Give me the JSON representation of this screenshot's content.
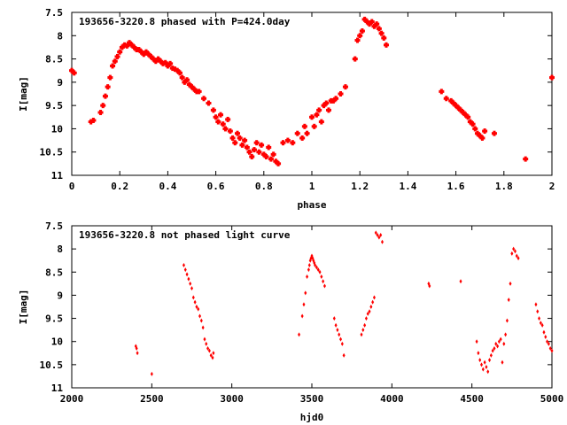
{
  "chart_data": [
    {
      "type": "scatter",
      "title": "193656-3220.8 phased with P=424.0day",
      "xlabel": "phase",
      "ylabel": "I[mag]",
      "xlim": [
        0,
        2
      ],
      "ylim": [
        11,
        7.5
      ],
      "y_inverted": true,
      "x_ticks": [
        "0",
        "0.2",
        "0.4",
        "0.6",
        "0.8",
        "1",
        "1.2",
        "1.4",
        "1.6",
        "1.8",
        "2"
      ],
      "y_ticks": [
        "7.5",
        "8",
        "8.5",
        "9",
        "9.5",
        "10",
        "10.5",
        "11"
      ],
      "grid": false,
      "marker_color": "#ff0000",
      "series": [
        {
          "x": [
            0.0,
            0.01,
            0.08,
            0.09,
            0.12,
            0.13,
            0.14,
            0.15,
            0.16,
            0.17,
            0.18,
            0.19,
            0.2,
            0.21,
            0.22,
            0.23,
            0.24,
            0.25,
            0.26,
            0.27,
            0.28,
            0.29,
            0.3,
            0.31,
            0.32,
            0.33,
            0.34,
            0.35,
            0.36,
            0.37,
            0.38,
            0.39,
            0.4,
            0.41,
            0.42,
            0.43,
            0.44,
            0.45,
            0.46,
            0.47,
            0.48,
            0.49,
            0.5,
            0.51,
            0.52,
            0.53,
            0.55,
            0.57,
            0.59,
            0.6,
            0.61,
            0.62,
            0.63,
            0.64,
            0.65,
            0.66,
            0.67,
            0.68,
            0.69,
            0.7,
            0.71,
            0.72,
            0.73,
            0.74,
            0.75,
            0.76,
            0.77,
            0.78,
            0.79,
            0.8,
            0.81,
            0.82,
            0.83,
            0.84,
            0.85,
            0.86,
            0.88,
            0.9,
            0.92,
            0.94,
            0.96,
            0.97,
            0.98,
            1.0,
            1.01,
            1.02,
            1.03,
            1.04,
            1.05,
            1.06,
            1.07,
            1.08,
            1.09,
            1.1,
            1.12,
            1.14,
            1.18,
            1.19,
            1.2,
            1.21,
            1.22,
            1.23,
            1.24,
            1.25,
            1.26,
            1.27,
            1.28,
            1.29,
            1.3,
            1.31,
            1.54,
            1.56,
            1.58,
            1.59,
            1.6,
            1.61,
            1.62,
            1.63,
            1.64,
            1.65,
            1.66,
            1.67,
            1.68,
            1.69,
            1.7,
            1.71,
            1.72,
            1.76,
            1.89,
            2.0
          ],
          "y": [
            8.75,
            8.8,
            9.85,
            9.82,
            9.65,
            9.5,
            9.3,
            9.1,
            8.9,
            8.65,
            8.55,
            8.45,
            8.35,
            8.25,
            8.2,
            8.22,
            8.15,
            8.2,
            8.25,
            8.3,
            8.3,
            8.35,
            8.4,
            8.35,
            8.4,
            8.45,
            8.5,
            8.55,
            8.5,
            8.55,
            8.6,
            8.58,
            8.65,
            8.6,
            8.7,
            8.72,
            8.75,
            8.8,
            8.9,
            9.0,
            8.95,
            9.05,
            9.1,
            9.15,
            9.2,
            9.2,
            9.35,
            9.45,
            9.6,
            9.75,
            9.85,
            9.7,
            9.9,
            10.0,
            9.8,
            10.05,
            10.2,
            10.3,
            10.1,
            10.2,
            10.35,
            10.25,
            10.4,
            10.5,
            10.6,
            10.45,
            10.3,
            10.5,
            10.35,
            10.55,
            10.6,
            10.4,
            10.65,
            10.55,
            10.7,
            10.75,
            10.3,
            10.25,
            10.3,
            10.1,
            10.2,
            9.95,
            10.1,
            9.75,
            9.95,
            9.7,
            9.6,
            9.85,
            9.5,
            9.45,
            9.6,
            9.4,
            9.4,
            9.35,
            9.25,
            9.1,
            8.5,
            8.1,
            8.0,
            7.9,
            7.65,
            7.7,
            7.75,
            7.7,
            7.8,
            7.75,
            7.85,
            7.95,
            8.05,
            8.2,
            9.2,
            9.35,
            9.4,
            9.45,
            9.5,
            9.55,
            9.6,
            9.65,
            9.7,
            9.75,
            9.85,
            9.9,
            10.0,
            10.1,
            10.15,
            10.2,
            10.05,
            10.1,
            10.65,
            8.9
          ]
        }
      ]
    },
    {
      "type": "scatter",
      "title": "193656-3220.8 not phased light curve",
      "xlabel": "hjd0",
      "ylabel": "I[mag]",
      "xlim": [
        2000,
        5000
      ],
      "ylim": [
        11,
        7.5
      ],
      "y_inverted": true,
      "x_ticks": [
        "2000",
        "2500",
        "3000",
        "3500",
        "4000",
        "4500",
        "5000"
      ],
      "y_ticks": [
        "7.5",
        "8",
        "8.5",
        "9",
        "9.5",
        "10",
        "10.5",
        "11"
      ],
      "grid": false,
      "marker_color": "#ff0000",
      "series": [
        {
          "x": [
            2400,
            2405,
            2410,
            2500,
            2700,
            2710,
            2720,
            2730,
            2740,
            2750,
            2760,
            2770,
            2780,
            2790,
            2800,
            2810,
            2820,
            2830,
            2840,
            2850,
            2860,
            2870,
            2880,
            2885,
            3420,
            3440,
            3450,
            3460,
            3470,
            3480,
            3485,
            3490,
            3495,
            3500,
            3505,
            3510,
            3515,
            3520,
            3530,
            3540,
            3550,
            3560,
            3570,
            3580,
            3640,
            3650,
            3660,
            3670,
            3680,
            3690,
            3700,
            3810,
            3820,
            3830,
            3840,
            3850,
            3860,
            3870,
            3880,
            3890,
            3900,
            3910,
            3920,
            3930,
            3940,
            4230,
            4235,
            4430,
            4530,
            4540,
            4550,
            4560,
            4570,
            4580,
            4590,
            4600,
            4610,
            4620,
            4630,
            4640,
            4650,
            4660,
            4670,
            4680,
            4690,
            4700,
            4710,
            4720,
            4730,
            4740,
            4750,
            4760,
            4770,
            4780,
            4790,
            4900,
            4910,
            4920,
            4930,
            4940,
            4950,
            4960,
            4970,
            4980,
            4990,
            5000
          ],
          "y": [
            10.1,
            10.15,
            10.25,
            10.7,
            8.35,
            8.45,
            8.55,
            8.65,
            8.75,
            8.85,
            9.05,
            9.15,
            9.25,
            9.3,
            9.45,
            9.55,
            9.7,
            9.95,
            10.05,
            10.15,
            10.2,
            10.3,
            10.35,
            10.25,
            9.85,
            9.45,
            9.2,
            8.95,
            8.6,
            8.45,
            8.35,
            8.25,
            8.2,
            8.15,
            8.2,
            8.25,
            8.3,
            8.35,
            8.4,
            8.45,
            8.5,
            8.6,
            8.7,
            8.8,
            9.5,
            9.65,
            9.75,
            9.85,
            9.95,
            10.05,
            10.3,
            9.85,
            9.75,
            9.65,
            9.5,
            9.4,
            9.35,
            9.25,
            9.15,
            9.05,
            7.65,
            7.7,
            7.75,
            7.7,
            7.85,
            8.75,
            8.8,
            8.7,
            10.0,
            10.25,
            10.4,
            10.5,
            10.6,
            10.45,
            10.55,
            10.65,
            10.4,
            10.3,
            10.2,
            10.15,
            10.05,
            10.1,
            10.0,
            9.95,
            10.45,
            10.05,
            9.85,
            9.55,
            9.1,
            8.75,
            8.1,
            8.0,
            8.05,
            8.15,
            8.2,
            9.2,
            9.35,
            9.5,
            9.6,
            9.65,
            9.8,
            9.9,
            10.0,
            10.05,
            10.15,
            10.2
          ]
        }
      ]
    }
  ]
}
